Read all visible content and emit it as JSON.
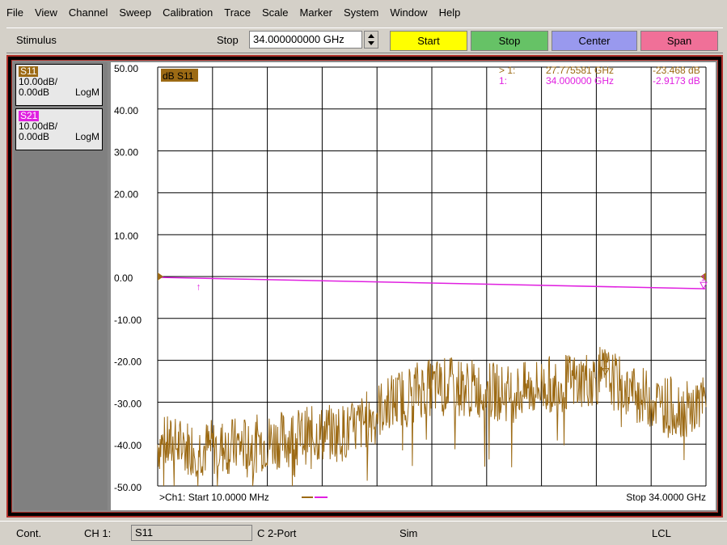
{
  "menu": [
    "File",
    "View",
    "Channel",
    "Sweep",
    "Calibration",
    "Trace",
    "Scale",
    "Marker",
    "System",
    "Window",
    "Help"
  ],
  "toolbar": {
    "label": "Stimulus",
    "stop_label": "Stop",
    "stop_value": "34.000000000 GHz",
    "buttons": [
      {
        "label": "Start",
        "color": "#ffff00"
      },
      {
        "label": "Stop",
        "color": "#66c266"
      },
      {
        "label": "Center",
        "color": "#9999ee"
      },
      {
        "label": "Span",
        "color": "#f07098"
      }
    ]
  },
  "traces": [
    {
      "name": "S11",
      "scale": "10.00dB/",
      "ref": "0.00dB",
      "format": "LogM",
      "color": "#9c6a14"
    },
    {
      "name": "S21",
      "scale": "10.00dB/",
      "ref": "0.00dB",
      "format": "LogM",
      "color": "#e020e0"
    }
  ],
  "plot": {
    "title": "dB S11",
    "y_ticks": [
      "50.00",
      "40.00",
      "30.00",
      "20.00",
      "10.00",
      "0.00",
      "-10.00",
      "-20.00",
      "-30.00",
      "-40.00",
      "-50.00"
    ],
    "markers": [
      {
        "label": "> 1:",
        "freq": "27.775581 GHz",
        "value": "-23.468 dB",
        "color": "#9c6a14"
      },
      {
        "label": "1:",
        "freq": "34.000000 GHz",
        "value": "-2.9173 dB",
        "color": "#e020e0"
      }
    ],
    "start_label": ">Ch1: Start  10.0000 MHz",
    "stop_label": "Stop  34.0000 GHz"
  },
  "chart_data": {
    "type": "line",
    "x_range_ghz": [
      0.01,
      34.0
    ],
    "ylim": [
      -50,
      50
    ],
    "series": [
      {
        "name": "S11",
        "color": "#9c6a14",
        "x_ghz": [
          0.01,
          3,
          6,
          9,
          12,
          14,
          16,
          18,
          20,
          22,
          24,
          26,
          27.78,
          29,
          31,
          33,
          34
        ],
        "y_db": [
          -40,
          -41,
          -40,
          -38,
          -37,
          -31,
          -27,
          -26,
          -27,
          -28,
          -26,
          -25,
          -23.5,
          -27,
          -30,
          -32,
          -30
        ]
      },
      {
        "name": "S21",
        "color": "#e020e0",
        "x_ghz": [
          0.01,
          34.0
        ],
        "y_db": [
          -0.2,
          -2.9173
        ]
      }
    ]
  },
  "status": {
    "cont": "Cont.",
    "ch": "CH 1:",
    "param": "S11",
    "port": "C  2-Port",
    "sim": "Sim",
    "lcl": "LCL"
  }
}
